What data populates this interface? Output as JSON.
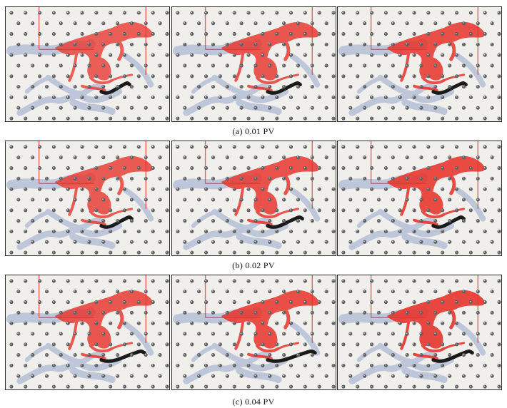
{
  "figure": {
    "rows": [
      {
        "caption": "(a) 0.01 PV",
        "panels": [
          {
            "invasion": 0.55,
            "dye": "red",
            "black_tail": 0.25
          },
          {
            "invasion": 0.65,
            "dye": "red",
            "black_tail": 0.35
          },
          {
            "invasion": 0.75,
            "dye": "red",
            "black_tail": 0.35
          }
        ]
      },
      {
        "caption": "(b) 0.02 PV",
        "panels": [
          {
            "invasion": 0.6,
            "dye": "red",
            "black_tail": 0.3
          },
          {
            "invasion": 0.7,
            "dye": "red",
            "black_tail": 0.4
          },
          {
            "invasion": 0.8,
            "dye": "red",
            "black_tail": 0.3
          }
        ]
      },
      {
        "caption": "(c) 0.04 PV",
        "panels": [
          {
            "invasion": 0.65,
            "dye": "red",
            "black_tail": 0.6
          },
          {
            "invasion": 0.75,
            "dye": "red",
            "black_tail": 0.7
          },
          {
            "invasion": 0.85,
            "dye": "red",
            "black_tail": 0.5
          }
        ]
      }
    ],
    "colors": {
      "injected_fluid": "#e8332b",
      "displaced_fluid": "#b9c3d8",
      "dark_front": "#1a1a1a",
      "background": "#eceae6",
      "post": "#5e6062"
    }
  }
}
